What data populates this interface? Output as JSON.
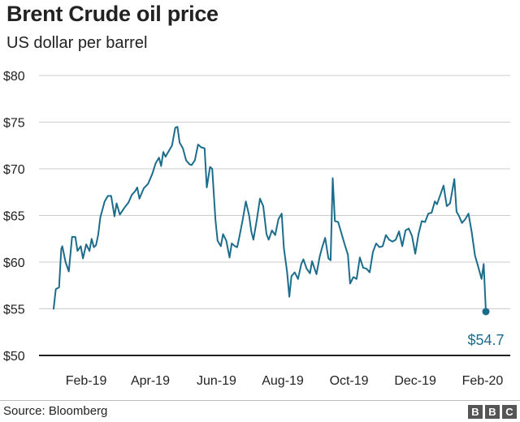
{
  "chart_data": {
    "type": "line",
    "title": "Brent Crude oil price",
    "subtitle": "US dollar per barrel",
    "ylabel": "US dollar per barrel",
    "xlabel": "",
    "ylim": [
      50,
      80
    ],
    "yticks": [
      50,
      55,
      60,
      65,
      70,
      75,
      80
    ],
    "ytick_labels": [
      "$50",
      "$55",
      "$60",
      "$65",
      "$70",
      "$75",
      "$80"
    ],
    "xlim": [
      "2019-01-02",
      "2020-02-20"
    ],
    "xticks": [
      "2019-02-01",
      "2019-04-01",
      "2019-06-01",
      "2019-08-01",
      "2019-10-01",
      "2019-12-01",
      "2020-02-01"
    ],
    "xtick_labels": [
      "Feb-19",
      "Apr-19",
      "Jun-19",
      "Aug-19",
      "Oct-19",
      "Dec-19",
      "Feb-20"
    ],
    "grid": true,
    "line_color": "#1c6d8c",
    "grid_color": "#cccccc",
    "end_label": "$54.7",
    "end_value": 54.7,
    "series": [
      {
        "name": "Brent Crude",
        "points": [
          [
            "2019-01-02",
            55.0
          ],
          [
            "2019-01-04",
            57.1
          ],
          [
            "2019-01-07",
            57.3
          ],
          [
            "2019-01-09",
            61.4
          ],
          [
            "2019-01-10",
            61.7
          ],
          [
            "2019-01-13",
            60.0
          ],
          [
            "2019-01-16",
            59.0
          ],
          [
            "2019-01-19",
            62.7
          ],
          [
            "2019-01-22",
            62.7
          ],
          [
            "2019-01-24",
            61.2
          ],
          [
            "2019-01-27",
            61.7
          ],
          [
            "2019-01-29",
            60.4
          ],
          [
            "2019-02-01",
            61.9
          ],
          [
            "2019-02-04",
            61.2
          ],
          [
            "2019-02-06",
            62.5
          ],
          [
            "2019-02-08",
            61.6
          ],
          [
            "2019-02-10",
            61.8
          ],
          [
            "2019-02-12",
            62.9
          ],
          [
            "2019-02-14",
            64.8
          ],
          [
            "2019-02-18",
            66.5
          ],
          [
            "2019-02-21",
            67.1
          ],
          [
            "2019-02-24",
            67.1
          ],
          [
            "2019-02-27",
            64.9
          ],
          [
            "2019-03-01",
            66.3
          ],
          [
            "2019-03-04",
            65.1
          ],
          [
            "2019-03-08",
            65.8
          ],
          [
            "2019-03-12",
            66.4
          ],
          [
            "2019-03-15",
            67.2
          ],
          [
            "2019-03-18",
            67.6
          ],
          [
            "2019-03-20",
            68.0
          ],
          [
            "2019-03-22",
            66.8
          ],
          [
            "2019-03-26",
            67.9
          ],
          [
            "2019-03-30",
            68.4
          ],
          [
            "2019-04-03",
            69.5
          ],
          [
            "2019-04-06",
            70.6
          ],
          [
            "2019-04-09",
            71.2
          ],
          [
            "2019-04-11",
            70.3
          ],
          [
            "2019-04-13",
            71.8
          ],
          [
            "2019-04-15",
            71.3
          ],
          [
            "2019-04-18",
            71.9
          ],
          [
            "2019-04-21",
            72.5
          ],
          [
            "2019-04-24",
            74.4
          ],
          [
            "2019-04-26",
            74.5
          ],
          [
            "2019-04-28",
            72.8
          ],
          [
            "2019-05-01",
            72.2
          ],
          [
            "2019-05-04",
            70.9
          ],
          [
            "2019-05-07",
            70.5
          ],
          [
            "2019-05-09",
            70.4
          ],
          [
            "2019-05-12",
            70.9
          ],
          [
            "2019-05-15",
            72.6
          ],
          [
            "2019-05-18",
            72.3
          ],
          [
            "2019-05-21",
            72.2
          ],
          [
            "2019-05-23",
            68.0
          ],
          [
            "2019-05-26",
            70.2
          ],
          [
            "2019-05-28",
            70.0
          ],
          [
            "2019-05-31",
            64.5
          ],
          [
            "2019-06-02",
            62.3
          ],
          [
            "2019-06-05",
            61.7
          ],
          [
            "2019-06-07",
            63.0
          ],
          [
            "2019-06-10",
            62.3
          ],
          [
            "2019-06-13",
            60.5
          ],
          [
            "2019-06-15",
            62.0
          ],
          [
            "2019-06-18",
            61.7
          ],
          [
            "2019-06-20",
            61.6
          ],
          [
            "2019-06-22",
            62.7
          ],
          [
            "2019-06-25",
            64.5
          ],
          [
            "2019-06-28",
            66.5
          ],
          [
            "2019-07-01",
            65.0
          ],
          [
            "2019-07-03",
            63.3
          ],
          [
            "2019-07-05",
            62.4
          ],
          [
            "2019-07-08",
            64.5
          ],
          [
            "2019-07-11",
            66.8
          ],
          [
            "2019-07-14",
            66.0
          ],
          [
            "2019-07-17",
            63.0
          ],
          [
            "2019-07-19",
            62.4
          ],
          [
            "2019-07-22",
            63.4
          ],
          [
            "2019-07-25",
            62.9
          ],
          [
            "2019-07-28",
            64.6
          ],
          [
            "2019-07-31",
            65.2
          ],
          [
            "2019-08-02",
            61.5
          ],
          [
            "2019-08-05",
            58.9
          ],
          [
            "2019-08-07",
            56.3
          ],
          [
            "2019-08-09",
            58.5
          ],
          [
            "2019-08-12",
            58.9
          ],
          [
            "2019-08-15",
            58.2
          ],
          [
            "2019-08-18",
            59.8
          ],
          [
            "2019-08-20",
            60.3
          ],
          [
            "2019-08-23",
            59.3
          ],
          [
            "2019-08-26",
            58.8
          ],
          [
            "2019-08-28",
            60.1
          ],
          [
            "2019-09-01",
            58.7
          ],
          [
            "2019-09-04",
            60.6
          ],
          [
            "2019-09-06",
            61.5
          ],
          [
            "2019-09-09",
            62.6
          ],
          [
            "2019-09-12",
            60.4
          ],
          [
            "2019-09-14",
            60.2
          ],
          [
            "2019-09-16",
            69.0
          ],
          [
            "2019-09-18",
            64.4
          ],
          [
            "2019-09-21",
            64.3
          ],
          [
            "2019-09-24",
            63.1
          ],
          [
            "2019-09-27",
            61.9
          ],
          [
            "2019-09-30",
            60.8
          ],
          [
            "2019-10-02",
            57.7
          ],
          [
            "2019-10-05",
            58.4
          ],
          [
            "2019-10-08",
            58.2
          ],
          [
            "2019-10-11",
            60.5
          ],
          [
            "2019-10-14",
            59.4
          ],
          [
            "2019-10-17",
            59.3
          ],
          [
            "2019-10-20",
            58.9
          ],
          [
            "2019-10-23",
            61.1
          ],
          [
            "2019-10-26",
            62.0
          ],
          [
            "2019-10-29",
            61.6
          ],
          [
            "2019-11-01",
            61.7
          ],
          [
            "2019-11-04",
            62.9
          ],
          [
            "2019-11-07",
            62.4
          ],
          [
            "2019-11-10",
            62.2
          ],
          [
            "2019-11-13",
            62.4
          ],
          [
            "2019-11-16",
            63.3
          ],
          [
            "2019-11-19",
            61.7
          ],
          [
            "2019-11-22",
            63.4
          ],
          [
            "2019-11-25",
            63.6
          ],
          [
            "2019-11-28",
            62.8
          ],
          [
            "2019-12-01",
            60.9
          ],
          [
            "2019-12-04",
            63.0
          ],
          [
            "2019-12-07",
            64.4
          ],
          [
            "2019-12-10",
            64.3
          ],
          [
            "2019-12-13",
            65.2
          ],
          [
            "2019-12-16",
            65.3
          ],
          [
            "2019-12-19",
            66.5
          ],
          [
            "2019-12-21",
            66.2
          ],
          [
            "2019-12-24",
            67.2
          ],
          [
            "2019-12-27",
            68.2
          ],
          [
            "2019-12-30",
            66.0
          ],
          [
            "2020-01-02",
            66.3
          ],
          [
            "2020-01-06",
            68.9
          ],
          [
            "2020-01-08",
            65.4
          ],
          [
            "2020-01-10",
            65.0
          ],
          [
            "2020-01-13",
            64.2
          ],
          [
            "2020-01-16",
            64.6
          ],
          [
            "2020-01-19",
            65.2
          ],
          [
            "2020-01-22",
            63.2
          ],
          [
            "2020-01-25",
            60.7
          ],
          [
            "2020-01-28",
            59.5
          ],
          [
            "2020-01-31",
            58.2
          ],
          [
            "2020-02-02",
            59.8
          ],
          [
            "2020-02-04",
            54.7
          ]
        ]
      }
    ]
  },
  "footer": {
    "source": "Source: Bloomberg",
    "logo_letters": [
      "B",
      "B",
      "C"
    ]
  }
}
